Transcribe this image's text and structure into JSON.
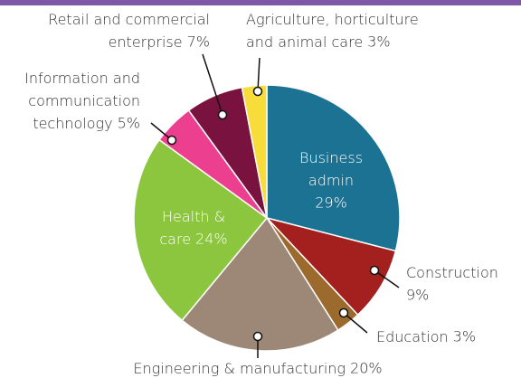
{
  "chart_data": {
    "type": "pie",
    "categories": [
      "Business admin",
      "Construction",
      "Education",
      "Engineering & manufacturing",
      "Health & care",
      "Information and communication technology",
      "Retail and commercial enterprise",
      "Agriculture, horticulture and animal care"
    ],
    "values": [
      29,
      9,
      3,
      20,
      24,
      5,
      7,
      3
    ],
    "value_labels": [
      "29%",
      "9%",
      "3%",
      "20%",
      "24%",
      "5%",
      "7%",
      "3%"
    ],
    "colors": [
      "#1b7292",
      "#a3201f",
      "#9b6a2c",
      "#9d8878",
      "#8cc63f",
      "#ec3f8f",
      "#7a1240",
      "#f7dc3a"
    ]
  }
}
